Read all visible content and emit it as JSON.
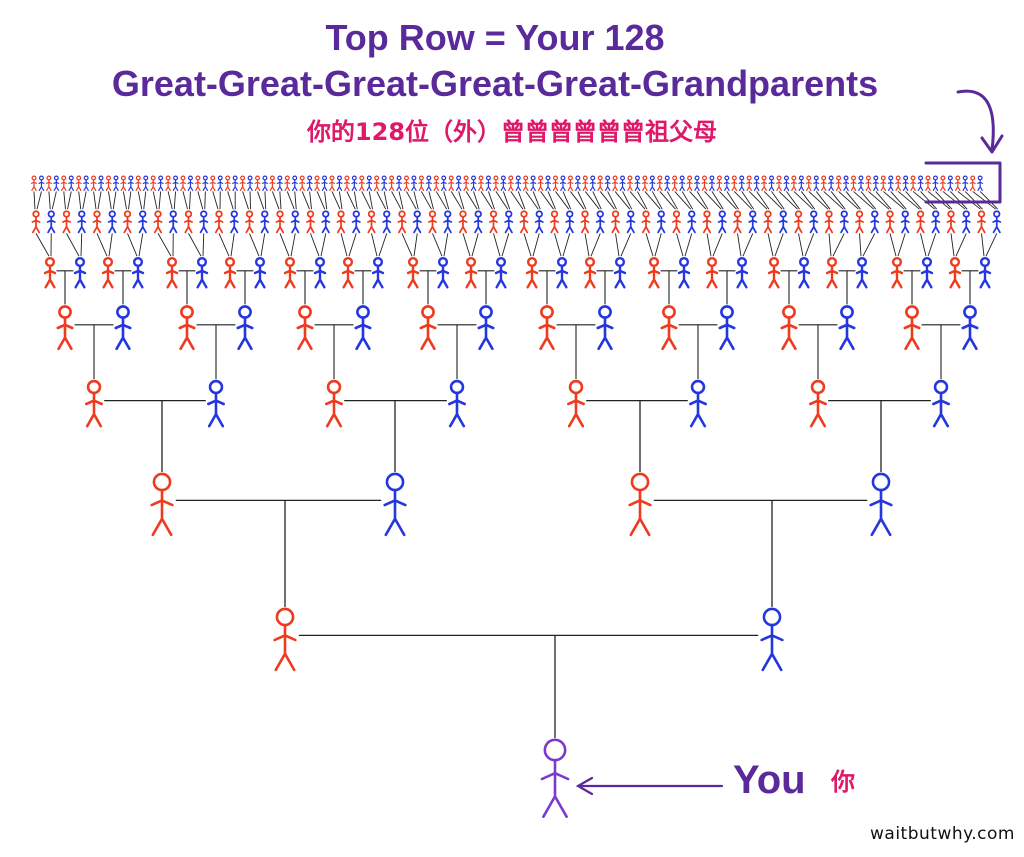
{
  "header": {
    "title_line1": "Top Row = Your 128",
    "title_line2": "Great-Great-Great-Great-Great-Grandparents",
    "subtitle_cn": "你的128位（外）曾曾曾曾曾曾祖父母"
  },
  "you": {
    "label": "You",
    "label_cn": "你"
  },
  "watermark": "waitbutwhy.com",
  "tree": {
    "generations": 8,
    "top_row_count": 128,
    "root": "You"
  },
  "colors": {
    "title": "#5a2a9a",
    "subtitle_cn": "#e0186a",
    "you_label": "#5a2a9a",
    "you_cn": "#e0186a",
    "female_line": "#ee3a1e",
    "male_line": "#2436dd",
    "you_figure": "#7a3acc",
    "connector": "#222222",
    "callout": "#5a2a9a"
  },
  "icons": {
    "person": "stick-figure-icon",
    "callout_arrow": "curved-arrow-icon",
    "you_arrow": "left-arrow-icon"
  }
}
